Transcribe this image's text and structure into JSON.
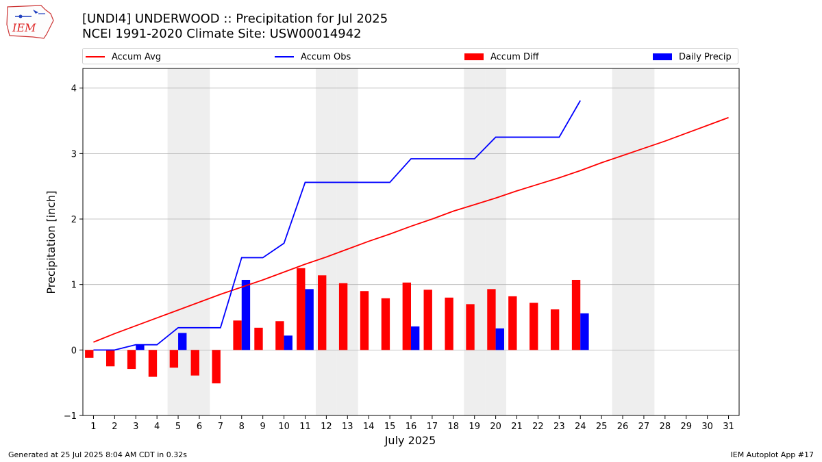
{
  "header": {
    "title_line1": "[UNDI4] UNDERWOOD :: Precipitation for Jul 2025",
    "title_line2": "NCEI 1991-2020 Climate Site: USW00014942",
    "logo_text": "IEM"
  },
  "footer": {
    "left": "Generated at 25 Jul 2025 8:04 AM CDT in 0.32s",
    "right": "IEM Autoplot App #17"
  },
  "colors": {
    "accum_avg": "#ff0000",
    "accum_obs": "#0000ff",
    "accum_diff": "#ff0000",
    "daily_precip": "#0000ff",
    "weekend_shade": "#eeeeee",
    "grid": "#b0b0b0"
  },
  "chart_data": {
    "type": "bar",
    "xlabel": "July 2025",
    "ylabel": "Precipitation [inch]",
    "ylim": [
      -1,
      4.3
    ],
    "yticks": [
      -1,
      0,
      1,
      2,
      3,
      4
    ],
    "grid": "horizontal",
    "legend_position": "top",
    "days": [
      1,
      2,
      3,
      4,
      5,
      6,
      7,
      8,
      9,
      10,
      11,
      12,
      13,
      14,
      15,
      16,
      17,
      18,
      19,
      20,
      21,
      22,
      23,
      24,
      25,
      26,
      27,
      28,
      29,
      30,
      31
    ],
    "weekend_days": [
      5,
      6,
      12,
      13,
      19,
      20,
      26,
      27
    ],
    "series": [
      {
        "name": "Accum Avg",
        "kind": "line",
        "values": [
          0.12,
          0.25,
          0.37,
          0.49,
          0.61,
          0.73,
          0.85,
          0.96,
          1.07,
          1.19,
          1.31,
          1.42,
          1.54,
          1.66,
          1.77,
          1.89,
          2.0,
          2.12,
          2.22,
          2.32,
          2.43,
          2.53,
          2.63,
          2.74,
          2.86,
          2.97,
          3.08,
          3.19,
          3.31,
          3.43,
          3.55
        ]
      },
      {
        "name": "Accum Obs",
        "kind": "line",
        "values": [
          0.0,
          0.0,
          0.08,
          0.08,
          0.34,
          0.34,
          0.34,
          1.41,
          1.41,
          1.63,
          2.56,
          2.56,
          2.56,
          2.56,
          2.56,
          2.92,
          2.92,
          2.92,
          2.92,
          3.25,
          3.25,
          3.25,
          3.25,
          3.81
        ]
      },
      {
        "name": "Accum Diff",
        "kind": "bar",
        "values": [
          -0.12,
          -0.25,
          -0.29,
          -0.41,
          -0.27,
          -0.39,
          -0.51,
          0.45,
          0.34,
          0.44,
          1.25,
          1.14,
          1.02,
          0.9,
          0.79,
          1.03,
          0.92,
          0.8,
          0.7,
          0.93,
          0.82,
          0.72,
          0.62,
          1.07
        ]
      },
      {
        "name": "Daily Precip",
        "kind": "bar",
        "values": [
          0.0,
          0.0,
          0.08,
          0.0,
          0.26,
          0.0,
          0.0,
          1.07,
          0.0,
          0.22,
          0.93,
          0.0,
          0.0,
          0.0,
          0.0,
          0.36,
          0.0,
          0.0,
          0.0,
          0.33,
          0.0,
          0.0,
          0.0,
          0.56
        ]
      }
    ]
  }
}
